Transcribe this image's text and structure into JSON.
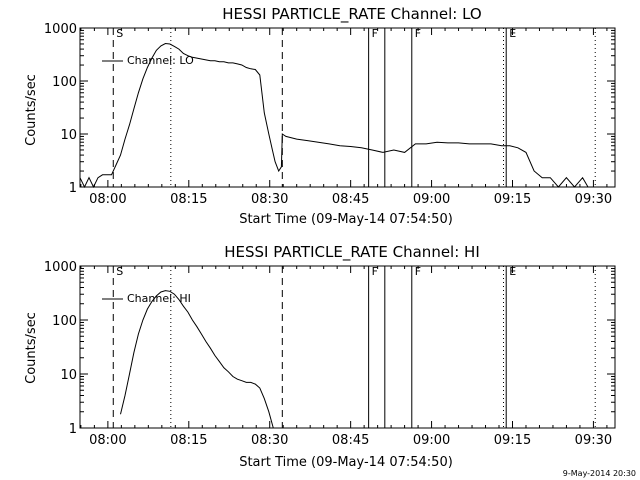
{
  "stamp": "9-May-2014 20:30",
  "colors": {
    "foreground": "#000000",
    "background": "#ffffff"
  },
  "chart_data": [
    {
      "type": "line",
      "title": "HESSI PARTICLE_RATE Channel: LO",
      "xlabel": "Start Time (09-May-14 07:54:50)",
      "ylabel": "Counts/sec",
      "legend": {
        "label": "Channel: LO",
        "placement": "top-left"
      },
      "y_scale": "log",
      "ylim": [
        1,
        1000
      ],
      "xlim": [
        "07:54:50",
        "09:34:00"
      ],
      "x_ticks": [
        "08:00",
        "08:15",
        "08:30",
        "08:45",
        "09:00",
        "09:15",
        "09:30"
      ],
      "y_ticks": [
        "1",
        "10",
        "100",
        "1000"
      ],
      "markers": [
        {
          "label": "S",
          "time": "08:01:00",
          "style": "dashed"
        },
        {
          "label": "",
          "time": "08:11:40",
          "style": "dotted"
        },
        {
          "label": "",
          "time": "08:32:20",
          "style": "dashed"
        },
        {
          "label": "F",
          "time": "08:48:20",
          "style": "solid"
        },
        {
          "label": "",
          "time": "08:51:20",
          "style": "solid"
        },
        {
          "label": "F",
          "time": "08:56:20",
          "style": "solid"
        },
        {
          "label": "E",
          "time": "09:13:50",
          "style": "solid"
        },
        {
          "label": "",
          "time": "09:13:20",
          "style": "dotted"
        },
        {
          "label": "",
          "time": "09:30:20",
          "style": "dotted"
        }
      ],
      "series": [
        {
          "x": [
            "07:54:50",
            "07:55:40",
            "07:56:30",
            "07:57:20",
            "07:58:10",
            "07:59:00",
            "07:59:50",
            "08:00:40",
            "08:01:30",
            "08:02:20",
            "08:03:10",
            "08:04:00",
            "08:04:50",
            "08:05:40",
            "08:06:30",
            "08:07:20",
            "08:08:10",
            "08:09:00",
            "08:09:50",
            "08:10:40",
            "08:11:30",
            "08:12:20",
            "08:13:10",
            "08:14:00",
            "08:14:50",
            "08:15:40",
            "08:16:30",
            "08:17:20",
            "08:18:10",
            "08:19:00",
            "08:19:50",
            "08:20:40",
            "08:21:30",
            "08:22:20",
            "08:23:10",
            "08:24:00",
            "08:24:50",
            "08:25:40",
            "08:26:30",
            "08:27:20",
            "08:28:10",
            "08:29:00",
            "08:29:50",
            "08:30:30",
            "08:31:00",
            "08:31:40",
            "08:32:10",
            "08:32:20",
            "08:33:00",
            "08:35:00",
            "08:37:00",
            "08:39:00",
            "08:41:00",
            "08:43:00",
            "08:45:00",
            "08:47:00",
            "08:49:00",
            "08:51:00",
            "08:53:00",
            "08:55:00",
            "08:57:00",
            "08:59:00",
            "09:01:00",
            "09:03:00",
            "09:05:00",
            "09:07:00",
            "09:09:00",
            "09:11:00",
            "09:13:00",
            "09:14:30",
            "09:16:00",
            "09:17:30",
            "09:19:00",
            "09:20:30",
            "09:22:00",
            "09:23:30",
            "09:25:00",
            "09:26:30",
            "09:28:00",
            "09:29:00"
          ],
          "y": [
            1.5,
            1,
            1.5,
            1,
            1.5,
            1.7,
            1.7,
            1.7,
            2.6,
            4,
            8,
            15,
            30,
            60,
            110,
            180,
            270,
            380,
            460,
            510,
            500,
            450,
            400,
            330,
            300,
            280,
            270,
            260,
            250,
            240,
            240,
            230,
            230,
            220,
            220,
            210,
            200,
            180,
            170,
            165,
            130,
            25,
            10,
            5,
            3,
            2,
            2.4,
            10,
            9,
            8,
            7.5,
            7,
            6.5,
            6,
            5.8,
            5.5,
            5,
            4.5,
            5,
            4.5,
            6.5,
            6.5,
            7,
            6.8,
            6.8,
            6.5,
            6.5,
            6.5,
            6,
            6,
            5.5,
            4.5,
            2,
            1.5,
            1.5,
            1,
            1.5,
            1,
            1.5,
            1
          ]
        }
      ]
    },
    {
      "type": "line",
      "title": "HESSI PARTICLE_RATE Channel: HI",
      "xlabel": "Start Time (09-May-14 07:54:50)",
      "ylabel": "Counts/sec",
      "legend": {
        "label": "Channel: HI",
        "placement": "top-left"
      },
      "y_scale": "log",
      "ylim": [
        1,
        1000
      ],
      "xlim": [
        "07:54:50",
        "09:34:00"
      ],
      "x_ticks": [
        "08:00",
        "08:15",
        "08:30",
        "08:45",
        "09:00",
        "09:15",
        "09:30"
      ],
      "y_ticks": [
        "1",
        "10",
        "100",
        "1000"
      ],
      "markers": [
        {
          "label": "S",
          "time": "08:01:00",
          "style": "dashed"
        },
        {
          "label": "",
          "time": "08:11:40",
          "style": "dotted"
        },
        {
          "label": "",
          "time": "08:32:20",
          "style": "dashed"
        },
        {
          "label": "F",
          "time": "08:48:20",
          "style": "solid"
        },
        {
          "label": "",
          "time": "08:51:20",
          "style": "solid"
        },
        {
          "label": "F",
          "time": "08:56:20",
          "style": "solid"
        },
        {
          "label": "E",
          "time": "09:13:50",
          "style": "solid"
        },
        {
          "label": "",
          "time": "09:13:20",
          "style": "dotted"
        },
        {
          "label": "",
          "time": "09:30:20",
          "style": "dotted"
        }
      ],
      "series": [
        {
          "x": [
            "08:02:20",
            "08:03:10",
            "08:04:00",
            "08:04:50",
            "08:05:40",
            "08:06:30",
            "08:07:20",
            "08:08:10",
            "08:09:00",
            "08:09:50",
            "08:10:40",
            "08:11:30",
            "08:12:20",
            "08:13:10",
            "08:14:00",
            "08:14:50",
            "08:15:40",
            "08:16:30",
            "08:17:20",
            "08:18:10",
            "08:19:00",
            "08:19:50",
            "08:20:40",
            "08:21:30",
            "08:22:20",
            "08:23:10",
            "08:24:00",
            "08:24:50",
            "08:25:40",
            "08:26:30",
            "08:27:20",
            "08:28:10",
            "08:29:00",
            "08:29:50",
            "08:30:40"
          ],
          "y": [
            1.8,
            4,
            10,
            25,
            55,
            100,
            160,
            220,
            280,
            330,
            350,
            340,
            300,
            240,
            180,
            140,
            100,
            75,
            55,
            40,
            30,
            22,
            17,
            13,
            11,
            9,
            8,
            7.5,
            7,
            7,
            6.5,
            5.5,
            3.5,
            2,
            1
          ]
        }
      ]
    }
  ]
}
